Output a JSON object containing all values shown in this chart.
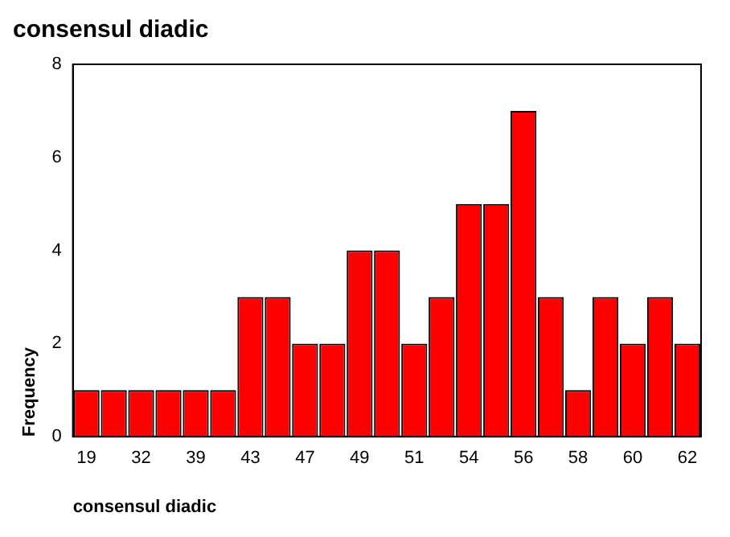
{
  "chart_data": {
    "type": "bar",
    "title": "consensul diadic",
    "xlabel": "consensul diadic",
    "ylabel": "Frequency",
    "categories": [
      "19",
      null,
      "32",
      null,
      "39",
      null,
      "43",
      null,
      "47",
      null,
      "49",
      null,
      "51",
      null,
      "54",
      null,
      "56",
      null,
      "58",
      null,
      "60",
      null,
      "62"
    ],
    "values": [
      1,
      1,
      1,
      1,
      1,
      1,
      3,
      3,
      2,
      2,
      4,
      4,
      2,
      3,
      5,
      5,
      7,
      3,
      1,
      3,
      2,
      3,
      2
    ],
    "color": "#ff0000",
    "ylim": [
      0,
      8
    ],
    "yticks": [
      0,
      2,
      4,
      6,
      8
    ],
    "grid": false,
    "legend": false
  }
}
